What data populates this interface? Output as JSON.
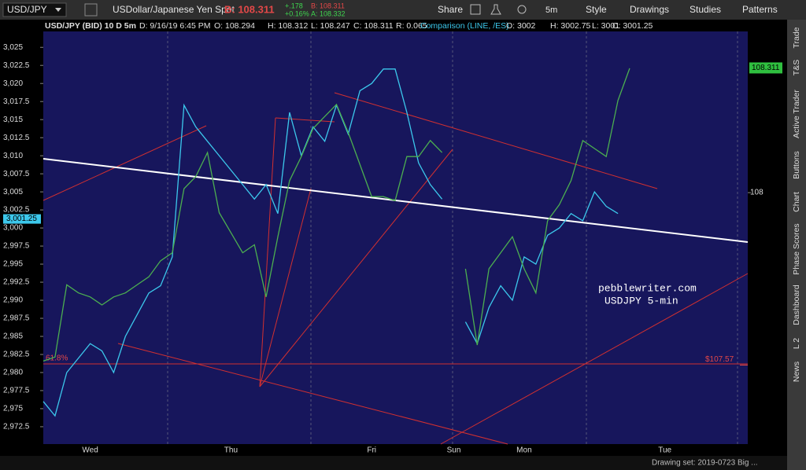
{
  "toolbar": {
    "symbol": "USD/JPY",
    "description": "USDollar/Japanese Yen Spot",
    "bid_big": "B: 108.311",
    "change": "+.178",
    "change_pct": "+0.16%",
    "bid": "B: 108.311",
    "ask": "A: 108.332",
    "share": "Share",
    "interval": "5m",
    "style": "Style",
    "drawings": "Drawings",
    "studies": "Studies",
    "patterns": "Patterns"
  },
  "info_bar": {
    "date": "D: 9/16/19 6:45 PM",
    "open": "O: 108.294",
    "high": "H: 108.312",
    "low": "L: 108.247",
    "close": "C: 108.311",
    "range": "R: 0.065",
    "cmp_open": "O: 3002",
    "cmp_high": "H: 3002.75",
    "cmp_low": "L: 3001",
    "cmp_close": "C: 3001.25"
  },
  "side_tabs": [
    "Trade",
    "T&S",
    "Active Trader",
    "Buttons",
    "Chart",
    "Phase Scores",
    "Dashboard",
    "L 2",
    "News"
  ],
  "status_bar": "Drawing set: 2019-0723 Big ...",
  "chart_data": {
    "type": "line",
    "categories": [
      null,
      null,
      null,
      null,
      "Wed",
      null,
      null,
      null,
      null,
      null,
      null,
      null,
      null,
      null,
      null,
      null,
      "Thu",
      null,
      null,
      null,
      null,
      null,
      null,
      null,
      null,
      null,
      null,
      null,
      "Fri",
      null,
      null,
      null,
      null,
      null,
      null,
      "Sun",
      null,
      null,
      null,
      null,
      null,
      "Mon",
      null,
      null,
      null,
      null,
      null,
      null,
      null,
      null,
      null,
      null,
      null,
      "Tue",
      null,
      null,
      null,
      null,
      null,
      null,
      null
    ],
    "series": [
      {
        "name": "Comparison (LINE, /ES)",
        "color": "#3cc8ec",
        "axis": "y",
        "values": [
          2976,
          2974,
          2980,
          2982,
          2984,
          2983,
          2980,
          2985,
          2988,
          2991,
          2992,
          2996,
          3017,
          3014,
          3012,
          3010,
          3008,
          3006,
          3004,
          3006,
          3002,
          3016,
          3010,
          3014,
          3012,
          3017,
          3013,
          3019,
          3020,
          3022,
          3022,
          3016,
          3009,
          3006,
          3004,
          null,
          2987,
          2984,
          2989,
          2992,
          2990,
          2996,
          2995,
          2999,
          3000,
          3002,
          3001,
          3005,
          3003,
          3002,
          null,
          null,
          null,
          null,
          null,
          null,
          null,
          null,
          null,
          null,
          null
        ]
      },
      {
        "name": "USD/JPY (BID) 10 D 5m",
        "color": "#4caf50",
        "axis": "y2",
        "values": [
          107.58,
          107.59,
          107.77,
          107.75,
          107.74,
          107.72,
          107.74,
          107.75,
          107.77,
          107.79,
          107.83,
          107.85,
          108.01,
          108.04,
          108.1,
          107.95,
          107.9,
          107.85,
          107.87,
          107.74,
          107.89,
          108.03,
          108.09,
          108.16,
          108.19,
          108.22,
          108.15,
          108.07,
          107.99,
          107.99,
          107.98,
          108.09,
          108.09,
          108.13,
          108.1,
          null,
          107.81,
          107.62,
          107.81,
          107.85,
          107.89,
          107.81,
          107.75,
          107.93,
          107.97,
          108.03,
          108.13,
          108.11,
          108.09,
          108.23,
          108.31,
          null,
          null,
          null,
          null,
          null,
          null,
          null,
          null,
          null,
          null
        ]
      }
    ],
    "ylim": [
      2970.1,
      3027.2
    ],
    "yticks": [
      {
        "value": 2972.5,
        "label": "2,972.5"
      },
      {
        "value": 2975,
        "label": "2,975"
      },
      {
        "value": 2977.5,
        "label": "2,977.5"
      },
      {
        "value": 2980,
        "label": "2,980"
      },
      {
        "value": 2982.5,
        "label": "2,982.5"
      },
      {
        "value": 2985,
        "label": "2,985"
      },
      {
        "value": 2987.5,
        "label": "2,987.5"
      },
      {
        "value": 2990,
        "label": "2,990"
      },
      {
        "value": 2992.5,
        "label": "2,992.5"
      },
      {
        "value": 2995,
        "label": "2,995"
      },
      {
        "value": 2997.5,
        "label": "2,997.5"
      },
      {
        "value": 3000,
        "label": "3,000"
      },
      {
        "value": 3002.5,
        "label": "3,002.5"
      },
      {
        "value": 3005,
        "label": "3,005"
      },
      {
        "value": 3007.5,
        "label": "3,007.5"
      },
      {
        "value": 3010,
        "label": "3,010"
      },
      {
        "value": 3012.5,
        "label": "3,012.5"
      },
      {
        "value": 3015,
        "label": "3,015"
      },
      {
        "value": 3017.5,
        "label": "3,017.5"
      },
      {
        "value": 3020,
        "label": "3,020"
      },
      {
        "value": 3022.5,
        "label": "3,022.5"
      },
      {
        "value": 3025,
        "label": "3,025"
      }
    ],
    "y2lim": [
      107.373,
      108.402
    ],
    "y2ticks": [
      108
    ],
    "last_y": {
      "value": 3001.25,
      "label": "3,001.25"
    },
    "last_y2": {
      "value": 108.311,
      "label": "108.311"
    },
    "level": {
      "value": 107.57,
      "label": "$107.57"
    },
    "fib_label": "61.8%",
    "watermark": [
      "pebblewriter.com",
      "USDJPY 5-min"
    ],
    "grid": false
  }
}
